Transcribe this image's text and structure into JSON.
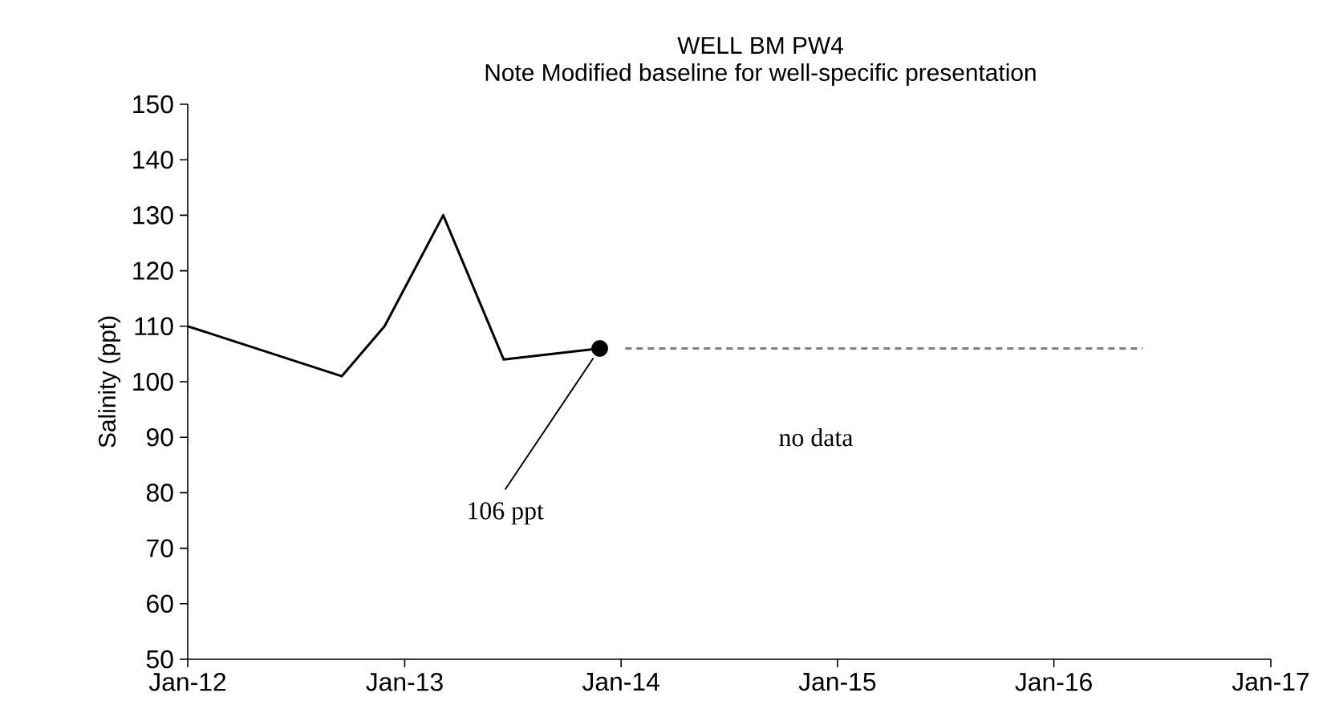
{
  "chart_data": {
    "type": "line",
    "title": "WELL BM PW4",
    "subtitle": "Note Modified baseline for well-specific presentation",
    "ylabel": "Salinity (ppt)",
    "series": [
      {
        "color": "#000000",
        "x": [
          "2012-01-01",
          "2012-09-17",
          "2012-11-28",
          "2013-03-07",
          "2013-06-17",
          "2013-11-26"
        ],
        "values": [
          110,
          101,
          110,
          130,
          104,
          106
        ]
      },
      {
        "type": "scatter",
        "marker": "circle",
        "color": "#000000",
        "x": [
          "2013-11-26"
        ],
        "values": [
          106
        ]
      },
      {
        "color": "#808080",
        "line_style": "dashed",
        "x": [
          "2014-01-08",
          "2016-05-30"
        ],
        "values": [
          106,
          106
        ]
      }
    ],
    "annotations": [
      {
        "text": "106 ppt",
        "x": "2013-11-26",
        "y": 106
      },
      "no data"
    ],
    "xlim": [
      "2012-01-01",
      "2017-01-01"
    ],
    "xticks": [
      {
        "value": "2012-01-01",
        "label": "Jan-12"
      },
      {
        "value": "2013-01-01",
        "label": "Jan-13"
      },
      {
        "value": "2014-01-01",
        "label": "Jan-14"
      },
      {
        "value": "2015-01-01",
        "label": "Jan-15"
      },
      {
        "value": "2016-01-01",
        "label": "Jan-16"
      },
      {
        "value": "2017-01-01",
        "label": "Jan-17"
      }
    ],
    "ylim": [
      50,
      150
    ],
    "yticks": [
      50,
      60,
      70,
      80,
      90,
      100,
      110,
      120,
      130,
      140,
      150
    ],
    "grid": false
  }
}
